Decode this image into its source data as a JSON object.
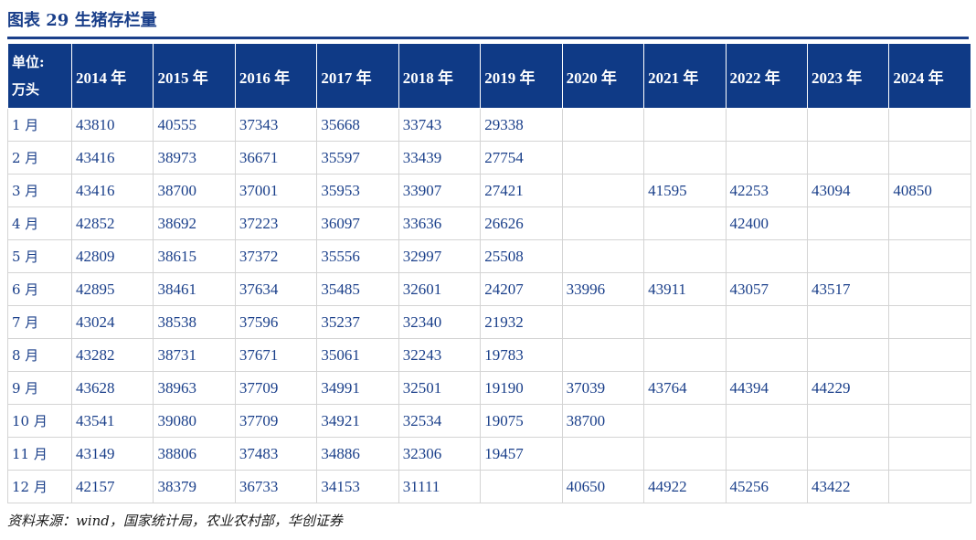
{
  "title": "图表 29    生猪存栏量",
  "table": {
    "unit_label_line1": "单位:",
    "unit_label_line2": "万头",
    "years": [
      "2014 年",
      "2015 年",
      "2016 年",
      "2017 年",
      "2018 年",
      "2019 年",
      "2020 年",
      "2021 年",
      "2022 年",
      "2023 年",
      "2024 年"
    ],
    "rows": [
      {
        "month": "1 月",
        "values": [
          "43810",
          "40555",
          "37343",
          "35668",
          "33743",
          "29338",
          "",
          "",
          "",
          "",
          ""
        ]
      },
      {
        "month": "2 月",
        "values": [
          "43416",
          "38973",
          "36671",
          "35597",
          "33439",
          "27754",
          "",
          "",
          "",
          "",
          ""
        ]
      },
      {
        "month": "3 月",
        "values": [
          "43416",
          "38700",
          "37001",
          "35953",
          "33907",
          "27421",
          "",
          "41595",
          "42253",
          "43094",
          "40850"
        ]
      },
      {
        "month": "4 月",
        "values": [
          "42852",
          "38692",
          "37223",
          "36097",
          "33636",
          "26626",
          "",
          "",
          "42400",
          "",
          ""
        ]
      },
      {
        "month": "5 月",
        "values": [
          "42809",
          "38615",
          "37372",
          "35556",
          "32997",
          "25508",
          "",
          "",
          "",
          "",
          ""
        ]
      },
      {
        "month": "6 月",
        "values": [
          "42895",
          "38461",
          "37634",
          "35485",
          "32601",
          "24207",
          "33996",
          "43911",
          "43057",
          "43517",
          ""
        ]
      },
      {
        "month": "7 月",
        "values": [
          "43024",
          "38538",
          "37596",
          "35237",
          "32340",
          "21932",
          "",
          "",
          "",
          "",
          ""
        ]
      },
      {
        "month": "8 月",
        "values": [
          "43282",
          "38731",
          "37671",
          "35061",
          "32243",
          "19783",
          "",
          "",
          "",
          "",
          ""
        ]
      },
      {
        "month": "9 月",
        "values": [
          "43628",
          "38963",
          "37709",
          "34991",
          "32501",
          "19190",
          "37039",
          "43764",
          "44394",
          "44229",
          ""
        ]
      },
      {
        "month": "10 月",
        "values": [
          "43541",
          "39080",
          "37709",
          "34921",
          "32534",
          "19075",
          "38700",
          "",
          "",
          "",
          ""
        ]
      },
      {
        "month": "11 月",
        "values": [
          "43149",
          "38806",
          "37483",
          "34886",
          "32306",
          "19457",
          "",
          "",
          "",
          "",
          ""
        ]
      },
      {
        "month": "12 月",
        "values": [
          "42157",
          "38379",
          "36733",
          "34153",
          "31111",
          "",
          "40650",
          "44922",
          "45256",
          "43422",
          ""
        ]
      }
    ]
  },
  "source": "资料来源：wind，国家统计局，农业农村部，华创证券",
  "colors": {
    "header_bg": "#0f3a86",
    "text_blue": "#1a3f8a"
  }
}
